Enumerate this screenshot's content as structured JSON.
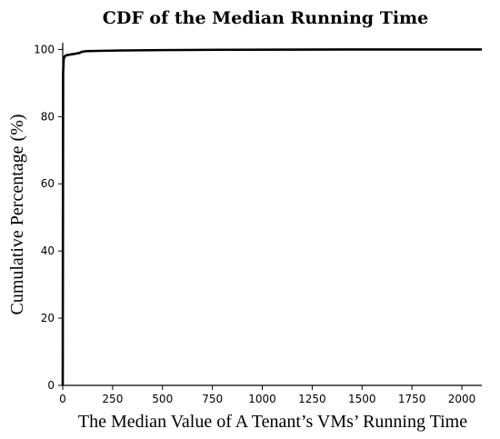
{
  "chart_data": {
    "type": "line",
    "title": "CDF of the Median Running Time",
    "xlabel": "The Median Value of A Tenant’s VMs’ Running Time",
    "ylabel": "Cumulative Percentage (%)",
    "xlim": [
      0,
      2100
    ],
    "ylim": [
      0,
      102
    ],
    "x_ticks": [
      0,
      250,
      500,
      750,
      1000,
      1250,
      1500,
      1750,
      2000
    ],
    "x_tick_labels": [
      "0",
      "250",
      "500",
      "750",
      "1000",
      "1250",
      "1500",
      "1750",
      "2000"
    ],
    "y_ticks": [
      0,
      20,
      40,
      60,
      80,
      100
    ],
    "y_tick_labels": [
      "0",
      "20",
      "40",
      "60",
      "80",
      "100"
    ],
    "grid": false,
    "legend": "none",
    "series": [
      {
        "color": "#000000",
        "x": [
          0,
          2,
          5,
          10,
          20,
          40,
          60,
          80,
          90,
          95,
          120,
          200,
          300,
          500,
          800,
          1200,
          1600,
          2100
        ],
        "y": [
          0,
          93,
          97.2,
          98.0,
          98.3,
          98.5,
          98.7,
          98.9,
          99.1,
          99.3,
          99.5,
          99.6,
          99.7,
          99.8,
          99.9,
          99.95,
          100,
          100
        ]
      }
    ]
  }
}
